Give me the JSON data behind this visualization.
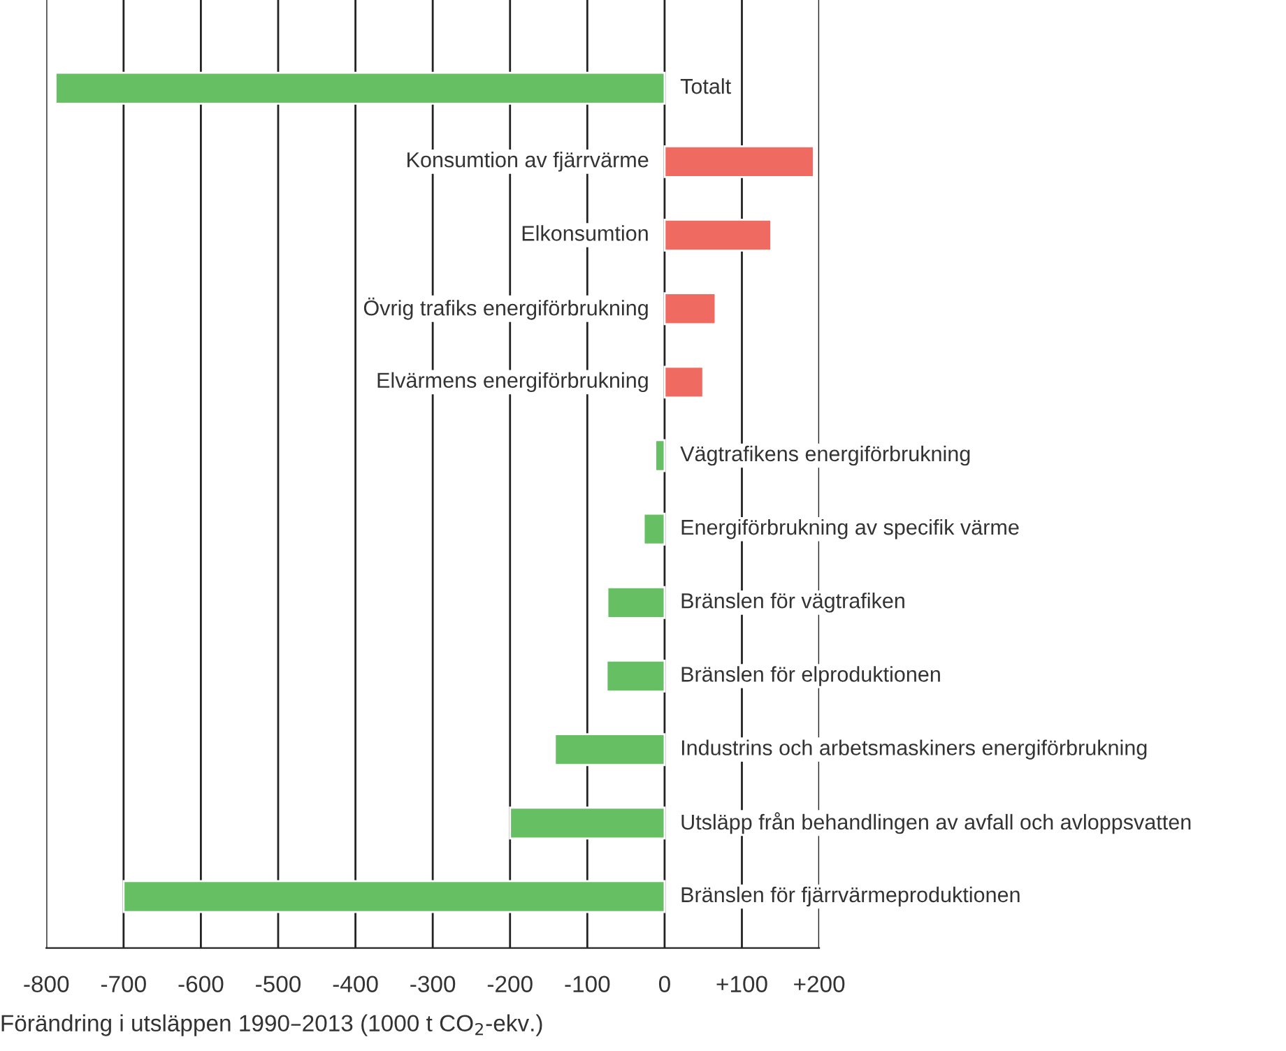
{
  "chart_data": {
    "type": "bar",
    "orientation": "horizontal",
    "xlabel": "Förändring i utsläppen 1990–2013 (1000 t CO$_{2}$-ekv.)",
    "categories": [
      "Totalt",
      "Konsumtion av fjärrvärme",
      "Elkonsumtion",
      "Övrig trafiks energiförbrukning",
      "Elvärmens energiförbrukning",
      "Vägtrafikens energiförbrukning",
      "Energiförbrukning av specifik värme",
      "Bränslen för vägtrafiken",
      "Bränslen för elproduktionen",
      "Industrins och arbetsmaskiners energiförbrukning",
      "Utsläpp från behandlingen av avfall och avloppsvatten",
      "Bränslen för fjärrvärmeproduktionen"
    ],
    "values": [
      -788,
      193,
      138,
      66,
      50,
      -12,
      -27,
      -74,
      -75,
      -142,
      -200,
      -700
    ],
    "colors": [
      "#66bf63",
      "#ef6b62",
      "#ef6b62",
      "#ef6b62",
      "#ef6b62",
      "#66bf63",
      "#66bf63",
      "#66bf63",
      "#66bf63",
      "#66bf63",
      "#66bf63",
      "#66bf63"
    ],
    "xlim": [
      -800,
      200
    ],
    "xticks": [
      -800,
      -700,
      -600,
      -500,
      -400,
      -300,
      -200,
      -100,
      0,
      {
        "value": 100,
        "label": "+100"
      },
      {
        "value": 200,
        "label": "+200"
      }
    ],
    "grid": "x",
    "legend": false
  }
}
